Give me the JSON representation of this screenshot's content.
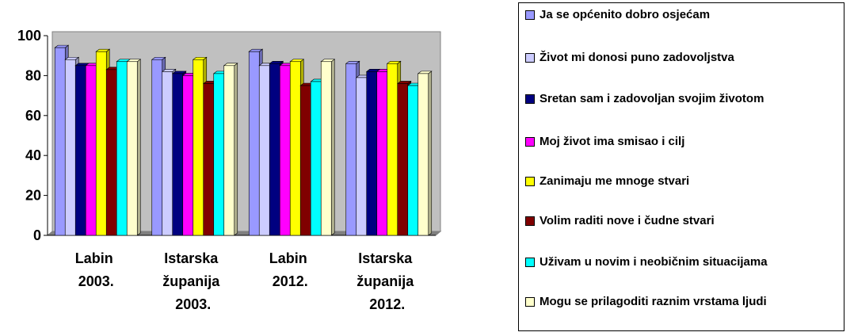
{
  "chart_data": {
    "type": "bar",
    "categories": [
      "Labin 2003.",
      "Istarska županija 2003.",
      "Labin 2012.",
      "Istarska županija 2012."
    ],
    "series": [
      {
        "name": "Ja se općenito dobro osjećam",
        "color": "#9999ff",
        "values": [
          94,
          88,
          92,
          86
        ]
      },
      {
        "name": "Život mi donosi puno zadovoljstva",
        "color": "#ccccff",
        "values": [
          88,
          82,
          85,
          79
        ]
      },
      {
        "name": "Sretan sam i zadovoljan svojim životom",
        "color": "#000080",
        "values": [
          85,
          81,
          86,
          82
        ]
      },
      {
        "name": "Moj život ima smisao i cilj",
        "color": "#ff00ff",
        "values": [
          85,
          80,
          85,
          82
        ]
      },
      {
        "name": "Zanimaju me mnoge stvari",
        "color": "#ffff00",
        "values": [
          92,
          88,
          87,
          86
        ]
      },
      {
        "name": "Volim raditi nove i čudne stvari",
        "color": "#800000",
        "values": [
          83,
          76,
          75,
          76
        ]
      },
      {
        "name": "Uživam u novim i neobičnim situacijama",
        "color": "#00ffff",
        "values": [
          87,
          81,
          77,
          75
        ]
      },
      {
        "name": "Mogu se prilagoditi raznim vrstama ljudi",
        "color": "#ffffcc",
        "values": [
          87,
          85,
          87,
          81
        ]
      }
    ],
    "ylim": [
      0,
      100
    ],
    "yticks": [
      0,
      20,
      40,
      60,
      80,
      100
    ],
    "legend": "right"
  }
}
